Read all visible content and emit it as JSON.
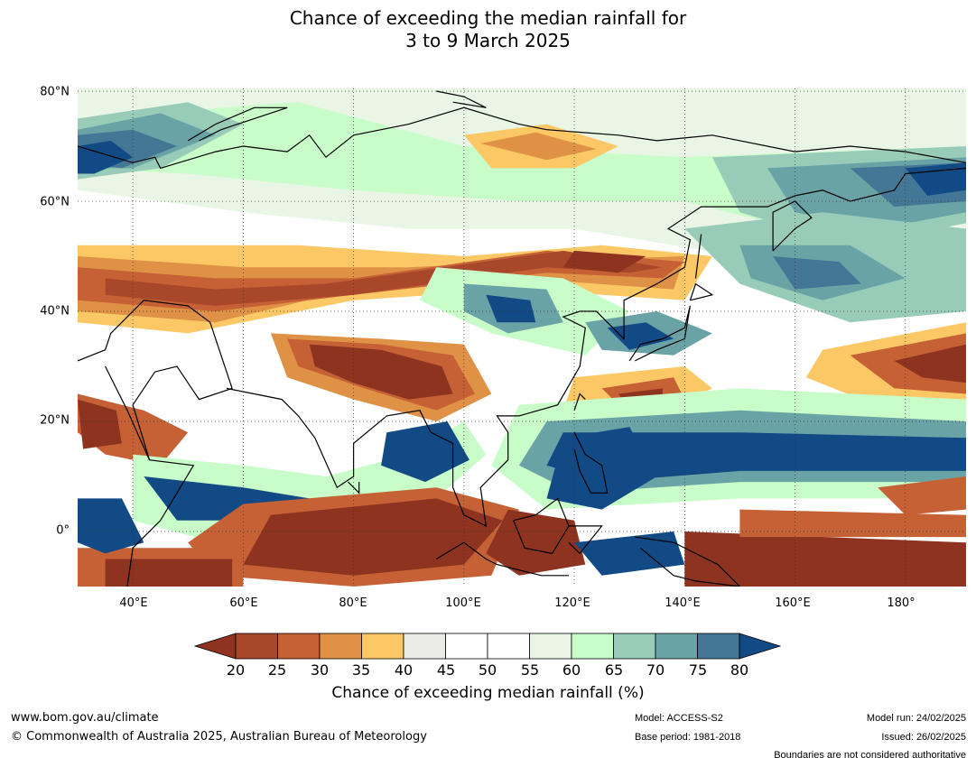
{
  "title": {
    "line1": "Chance of exceeding the median rainfall for",
    "line2": "3 to 9 March 2025"
  },
  "map": {
    "lat_labels": [
      "80°N",
      "60°N",
      "40°N",
      "20°N",
      "0°"
    ],
    "lat_values": [
      80,
      60,
      40,
      20,
      0
    ],
    "lon_labels": [
      "40°E",
      "60°E",
      "80°E",
      "100°E",
      "120°E",
      "140°E",
      "160°E",
      "180°"
    ],
    "lon_values": [
      40,
      60,
      80,
      100,
      120,
      140,
      160,
      180
    ],
    "extent": {
      "lon_min": 30,
      "lon_max": 191,
      "lat_min": -10,
      "lat_max": 80.5
    },
    "gridlines": "dotted"
  },
  "colorbar": {
    "ticks": [
      "20",
      "25",
      "30",
      "35",
      "40",
      "45",
      "50",
      "55",
      "60",
      "65",
      "70",
      "75",
      "80"
    ],
    "colors": {
      "below_20": "#8e3320",
      "20_25": "#a8472a",
      "25_30": "#c56135",
      "30_35": "#df9145",
      "35_40": "#fcc866",
      "40_45": "#ebebe7",
      "45_50": "#ffffff",
      "50_55": "#ffffff",
      "55_60": "#e9f5e5",
      "60_65": "#c8fcc8",
      "65_70": "#98ccb8",
      "70_75": "#6aa3a5",
      "75_80": "#447796",
      "above_80": "#124a86"
    },
    "label": "Chance of exceeding median rainfall (%)"
  },
  "footer": {
    "url": "www.bom.gov.au/climate",
    "copyright": "© Commonwealth of Australia 2025, Australian Bureau of Meteorology",
    "model": "Model: ACCESS-S2",
    "base_period": "Base period: 1981-2018",
    "model_run": "Model run: 24/02/2025",
    "issued": "Issued: 26/02/2025",
    "disclaimer": "Boundaries are not considered authoritative"
  }
}
